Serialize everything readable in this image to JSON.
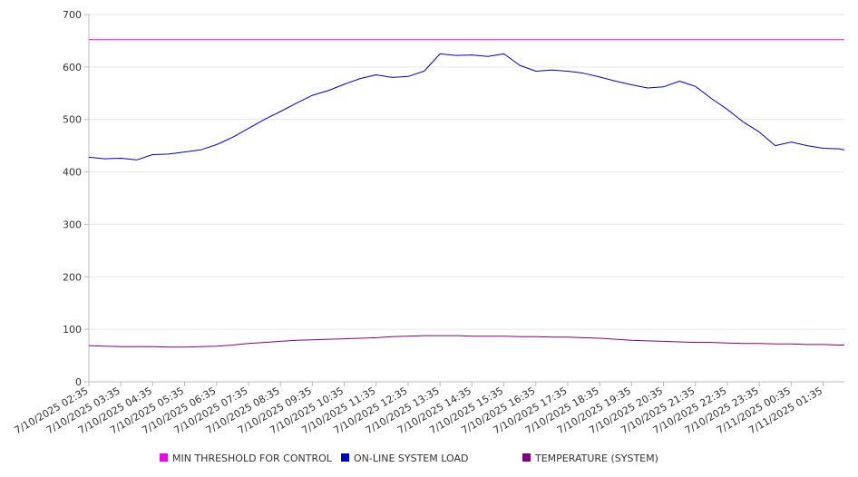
{
  "chart_data": {
    "type": "line",
    "title": "",
    "xlabel": "",
    "ylabel": "",
    "ylim": [
      0,
      700
    ],
    "yticks": [
      0,
      100,
      200,
      300,
      400,
      500,
      600,
      700
    ],
    "grid": true,
    "legend_position": "bottom",
    "x_tick_labels": [
      "7/10/2025 02:35",
      "7/10/2025 03:35",
      "7/10/2025 04:35",
      "7/10/2025 05:35",
      "7/10/2025 06:35",
      "7/10/2025 07:35",
      "7/10/2025 08:35",
      "7/10/2025 09:35",
      "7/10/2025 10:35",
      "7/10/2025 11:35",
      "7/10/2025 12:35",
      "7/10/2025 13:35",
      "7/10/2025 14:35",
      "7/10/2025 15:35",
      "7/10/2025 16:35",
      "7/10/2025 17:35",
      "7/10/2025 18:35",
      "7/10/2025 19:35",
      "7/10/2025 20:35",
      "7/10/2025 21:35",
      "7/10/2025 22:35",
      "7/10/2025 23:35",
      "7/11/2025 00:35",
      "7/11/2025 01:35"
    ],
    "x": [
      "7/10/2025 02:35",
      "7/10/2025 03:05",
      "7/10/2025 03:35",
      "7/10/2025 04:05",
      "7/10/2025 04:35",
      "7/10/2025 05:05",
      "7/10/2025 05:35",
      "7/10/2025 06:05",
      "7/10/2025 06:35",
      "7/10/2025 07:05",
      "7/10/2025 07:35",
      "7/10/2025 08:05",
      "7/10/2025 08:35",
      "7/10/2025 09:05",
      "7/10/2025 09:35",
      "7/10/2025 10:05",
      "7/10/2025 10:35",
      "7/10/2025 11:05",
      "7/10/2025 11:35",
      "7/10/2025 12:05",
      "7/10/2025 12:35",
      "7/10/2025 13:05",
      "7/10/2025 13:35",
      "7/10/2025 14:05",
      "7/10/2025 14:35",
      "7/10/2025 15:05",
      "7/10/2025 15:35",
      "7/10/2025 16:05",
      "7/10/2025 16:35",
      "7/10/2025 17:05",
      "7/10/2025 17:35",
      "7/10/2025 18:05",
      "7/10/2025 18:35",
      "7/10/2025 19:05",
      "7/10/2025 19:35",
      "7/10/2025 20:05",
      "7/10/2025 20:35",
      "7/10/2025 21:05",
      "7/10/2025 21:35",
      "7/10/2025 22:05",
      "7/10/2025 22:35",
      "7/10/2025 23:05",
      "7/10/2025 23:35",
      "7/11/2025 00:05",
      "7/11/2025 00:35",
      "7/11/2025 01:05",
      "7/11/2025 01:35",
      "7/11/2025 02:05",
      "7/11/2025 02:25"
    ],
    "series": [
      {
        "name": "MIN THRESHOLD FOR CONTROL",
        "color": "#ee00ee",
        "values": [
          652,
          652,
          652,
          652,
          652,
          652,
          652,
          652,
          652,
          652,
          652,
          652,
          652,
          652,
          652,
          652,
          652,
          652,
          652,
          652,
          652,
          652,
          652,
          652,
          652,
          652,
          652,
          652,
          652,
          652,
          652,
          652,
          652,
          652,
          652,
          652,
          652,
          652,
          652,
          652,
          652,
          652,
          652,
          652,
          652,
          652,
          652,
          652,
          652
        ]
      },
      {
        "name": "ON-LINE SYSTEM LOAD",
        "color": "#0000cc",
        "values": [
          428,
          425,
          426,
          423,
          433,
          434,
          438,
          442,
          452,
          466,
          483,
          500,
          515,
          531,
          546,
          555,
          567,
          578,
          585,
          580,
          582,
          592,
          625,
          622,
          623,
          620,
          625,
          603,
          592,
          594,
          592,
          588,
          581,
          573,
          566,
          560,
          562,
          573,
          563,
          540,
          519,
          495,
          476,
          450,
          457,
          450,
          445,
          444,
          442
        ]
      },
      {
        "name": "TEMPERATURE (SYSTEM)",
        "color": "#800080",
        "values": [
          69,
          68,
          67,
          67,
          67,
          66,
          66,
          67,
          68,
          70,
          73,
          75,
          77,
          79,
          80,
          81,
          82,
          83,
          84,
          86,
          87,
          88,
          88,
          88,
          87,
          87,
          87,
          86,
          86,
          85,
          85,
          84,
          83,
          81,
          79,
          78,
          77,
          76,
          75,
          75,
          74,
          73,
          73,
          72,
          72,
          71,
          71,
          70,
          70
        ]
      }
    ]
  }
}
